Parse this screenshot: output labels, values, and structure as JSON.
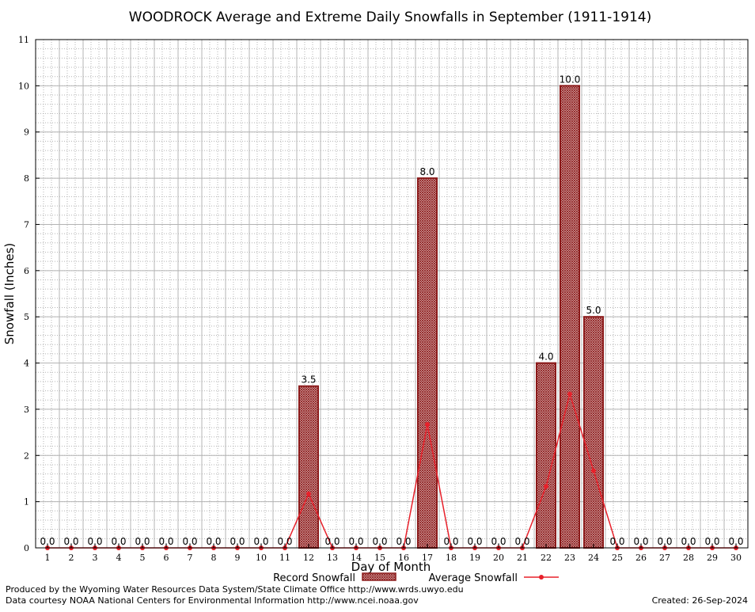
{
  "chart_data": {
    "type": "bar",
    "title": "WOODROCK Average and Extreme Daily Snowfalls in September (1911-1914)",
    "xlabel": "Day of Month",
    "ylabel": "Snowfall (Inches)",
    "ylim": [
      0,
      11
    ],
    "yticks": [
      "0",
      "1",
      "2",
      "3",
      "4",
      "5",
      "6",
      "7",
      "8",
      "9",
      "10",
      "11"
    ],
    "categories": [
      "1",
      "2",
      "3",
      "4",
      "5",
      "6",
      "7",
      "8",
      "9",
      "10",
      "11",
      "12",
      "13",
      "14",
      "15",
      "16",
      "17",
      "18",
      "19",
      "20",
      "21",
      "22",
      "23",
      "24",
      "25",
      "26",
      "27",
      "28",
      "29",
      "30"
    ],
    "grid": true,
    "legend_position": "bottom",
    "series": [
      {
        "name": "Record Snowfall",
        "type": "bar",
        "color": "#8b1a1a",
        "values": [
          0,
          0,
          0,
          0,
          0,
          0,
          0,
          0,
          0,
          0,
          0,
          3.5,
          0,
          0,
          0,
          0,
          8.0,
          0,
          0,
          0,
          0,
          4.0,
          10.0,
          5.0,
          0,
          0,
          0,
          0,
          0,
          0
        ],
        "labels": [
          "0.0",
          "0.0",
          "0.0",
          "0.0",
          "0.0",
          "0.0",
          "0.0",
          "0.0",
          "0.0",
          "0.0",
          "0.0",
          "3.5",
          "0.0",
          "0.0",
          "0.0",
          "0.0",
          "8.0",
          "0.0",
          "0.0",
          "0.0",
          "0.0",
          "4.0",
          "10.0",
          "5.0",
          "0.0",
          "0.0",
          "0.0",
          "0.0",
          "0.0",
          "0.0"
        ]
      },
      {
        "name": "Average Snowfall",
        "type": "line",
        "color": "#e8202a",
        "values": [
          0,
          0,
          0,
          0,
          0,
          0,
          0,
          0,
          0,
          0,
          0,
          1.17,
          0,
          0,
          0,
          0,
          2.67,
          0,
          0,
          0,
          0,
          1.33,
          3.33,
          1.67,
          0,
          0,
          0,
          0,
          0,
          0
        ]
      }
    ]
  },
  "footer": {
    "producer": "Produced by the Wyoming Water Resources Data System/State Climate Office http://www.wrds.uwyo.edu",
    "courtesy": "Data courtesy NOAA National Centers for Environmental Information http://www.ncei.noaa.gov",
    "created": "Created:  26-Sep-2024"
  }
}
